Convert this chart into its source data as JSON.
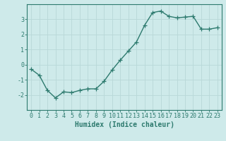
{
  "x": [
    0,
    1,
    2,
    3,
    4,
    5,
    6,
    7,
    8,
    9,
    10,
    11,
    12,
    13,
    14,
    15,
    16,
    17,
    18,
    19,
    20,
    21,
    22,
    23
  ],
  "y": [
    -0.3,
    -0.7,
    -1.7,
    -2.2,
    -1.8,
    -1.85,
    -1.7,
    -1.6,
    -1.6,
    -1.1,
    -0.35,
    0.3,
    0.9,
    1.5,
    2.6,
    3.45,
    3.55,
    3.2,
    3.1,
    3.15,
    3.2,
    2.35,
    2.35,
    2.45
  ],
  "xlabel": "Humidex (Indice chaleur)",
  "xlim": [
    -0.5,
    23.5
  ],
  "ylim": [
    -3,
    4
  ],
  "yticks": [
    -2,
    -1,
    0,
    1,
    2,
    3
  ],
  "xticks": [
    0,
    1,
    2,
    3,
    4,
    5,
    6,
    7,
    8,
    9,
    10,
    11,
    12,
    13,
    14,
    15,
    16,
    17,
    18,
    19,
    20,
    21,
    22,
    23
  ],
  "line_color": "#2d7a6e",
  "marker": "+",
  "bg_color": "#ceeaea",
  "grid_color": "#b8d8d8",
  "axis_color": "#2d7a6e",
  "tick_color": "#2d7a6e",
  "label_color": "#2d7a6e",
  "xlabel_fontsize": 7,
  "tick_fontsize": 6,
  "linewidth": 1.0,
  "markersize": 4,
  "marker_ew": 0.9
}
